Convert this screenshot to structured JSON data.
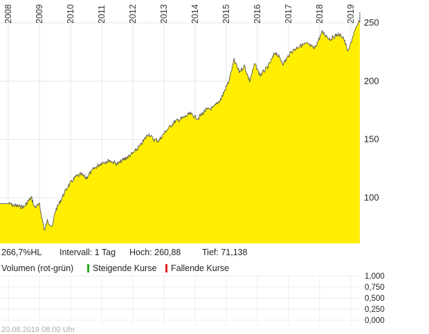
{
  "chart_data": {
    "type": "area",
    "series_color": "#ffee00",
    "line_color": "#555555",
    "years": [
      "2008",
      "2009",
      "2010",
      "2011",
      "2012",
      "2013",
      "2014",
      "2015",
      "2016",
      "2017",
      "2018",
      "2019"
    ],
    "y_ticks": [
      100,
      150,
      200,
      250
    ],
    "ylim": [
      60,
      260
    ],
    "points": [
      [
        "2008-01",
        95
      ],
      [
        "2008-04",
        93
      ],
      [
        "2008-07",
        92
      ],
      [
        "2008-09",
        98
      ],
      [
        "2008-10",
        100
      ],
      [
        "2008-11",
        92
      ],
      [
        "2009-01",
        94
      ],
      [
        "2009-02",
        82
      ],
      [
        "2009-03",
        72
      ],
      [
        "2009-04",
        80
      ],
      [
        "2009-05",
        78
      ],
      [
        "2009-06",
        75
      ],
      [
        "2009-07",
        88
      ],
      [
        "2009-09",
        97
      ],
      [
        "2009-12",
        110
      ],
      [
        "2010-03",
        118
      ],
      [
        "2010-05",
        120
      ],
      [
        "2010-07",
        117
      ],
      [
        "2010-10",
        125
      ],
      [
        "2011-01",
        130
      ],
      [
        "2011-04",
        132
      ],
      [
        "2011-07",
        129
      ],
      [
        "2011-09",
        132
      ],
      [
        "2012-01",
        138
      ],
      [
        "2012-04",
        145
      ],
      [
        "2012-07",
        155
      ],
      [
        "2012-09",
        150
      ],
      [
        "2012-11",
        149
      ],
      [
        "2013-02",
        158
      ],
      [
        "2013-05",
        165
      ],
      [
        "2013-08",
        168
      ],
      [
        "2013-11",
        172
      ],
      [
        "2014-02",
        168
      ],
      [
        "2014-05",
        175
      ],
      [
        "2014-08",
        177
      ],
      [
        "2014-11",
        185
      ],
      [
        "2015-02",
        200
      ],
      [
        "2015-04",
        218
      ],
      [
        "2015-06",
        208
      ],
      [
        "2015-08",
        213
      ],
      [
        "2015-10",
        200
      ],
      [
        "2015-12",
        215
      ],
      [
        "2016-02",
        205
      ],
      [
        "2016-05",
        212
      ],
      [
        "2016-08",
        225
      ],
      [
        "2016-11",
        215
      ],
      [
        "2017-02",
        225
      ],
      [
        "2017-05",
        230
      ],
      [
        "2017-08",
        232
      ],
      [
        "2017-11",
        228
      ],
      [
        "2018-02",
        242
      ],
      [
        "2018-05",
        236
      ],
      [
        "2018-08",
        240
      ],
      [
        "2018-10",
        238
      ],
      [
        "2018-12",
        225
      ],
      [
        "2019-02",
        240
      ],
      [
        "2019-04",
        250
      ],
      [
        "2019-06",
        258
      ],
      [
        "2019-08",
        255
      ]
    ]
  },
  "stats": {
    "change": "266,7%HL",
    "interval": "Intervall: 1 Tag",
    "high": "Hoch:  260,88",
    "low": "Tief:  71,138"
  },
  "volume_panel": {
    "title": "Volumen (rot-grün)",
    "rising_label": "Steigende Kurse",
    "falling_label": "Fallende Kurse",
    "rising_color": "#22aa22",
    "falling_color": "#dd2222",
    "y_ticks": [
      "1,000",
      "0,750",
      "0,500",
      "0,250",
      "0,000"
    ]
  },
  "timestamp": "20.08.2019 08:00 Uhr"
}
